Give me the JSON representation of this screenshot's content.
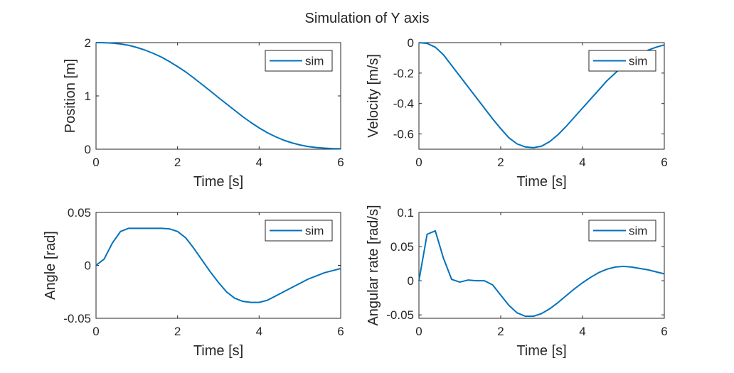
{
  "figure": {
    "title": "Simulation of Y axis",
    "line_color": "#0072BD",
    "axes_color": "#262626"
  },
  "chart_data": [
    {
      "type": "line",
      "xlabel": "Time [s]",
      "ylabel": "Position [m]",
      "xlim": [
        0,
        6
      ],
      "ylim": [
        0,
        2
      ],
      "xticks": [
        0,
        2,
        4,
        6
      ],
      "yticks": [
        0,
        1,
        2
      ],
      "ytick_labels": [
        "0",
        "1",
        "2"
      ],
      "xtick_labels": [
        "0",
        "2",
        "4",
        "6"
      ],
      "grid": false,
      "legend": "top-right",
      "series": [
        {
          "name": "sim",
          "x": [
            0,
            0.2,
            0.4,
            0.6,
            0.8,
            1.0,
            1.2,
            1.4,
            1.6,
            1.8,
            2.0,
            2.2,
            2.4,
            2.6,
            2.8,
            3.0,
            3.2,
            3.4,
            3.6,
            3.8,
            4.0,
            4.2,
            4.4,
            4.6,
            4.8,
            5.0,
            5.2,
            5.4,
            5.6,
            5.8,
            6.0
          ],
          "values": [
            2.0,
            1.998,
            1.99,
            1.975,
            1.95,
            1.91,
            1.86,
            1.8,
            1.73,
            1.645,
            1.55,
            1.45,
            1.335,
            1.215,
            1.095,
            0.97,
            0.85,
            0.73,
            0.61,
            0.5,
            0.4,
            0.31,
            0.235,
            0.17,
            0.12,
            0.08,
            0.05,
            0.032,
            0.02,
            0.012,
            0.008
          ]
        }
      ]
    },
    {
      "type": "line",
      "xlabel": "Time [s]",
      "ylabel": "Velocity [m/s]",
      "xlim": [
        0,
        6
      ],
      "ylim": [
        -0.7,
        0
      ],
      "xticks": [
        0,
        2,
        4,
        6
      ],
      "yticks": [
        0,
        -0.2,
        -0.4,
        -0.6
      ],
      "ytick_labels": [
        "0",
        "-0.2",
        "-0.4",
        "-0.6"
      ],
      "xtick_labels": [
        "0",
        "2",
        "4",
        "6"
      ],
      "grid": false,
      "legend": "top-right",
      "series": [
        {
          "name": "sim",
          "x": [
            0,
            0.2,
            0.4,
            0.6,
            0.8,
            1.0,
            1.2,
            1.4,
            1.6,
            1.8,
            2.0,
            2.2,
            2.4,
            2.6,
            2.8,
            3.0,
            3.2,
            3.4,
            3.6,
            3.8,
            4.0,
            4.2,
            4.4,
            4.6,
            4.8,
            5.0,
            5.2,
            5.4,
            5.6,
            5.8,
            6.0
          ],
          "values": [
            0,
            -0.005,
            -0.03,
            -0.08,
            -0.15,
            -0.22,
            -0.29,
            -0.36,
            -0.43,
            -0.5,
            -0.565,
            -0.625,
            -0.665,
            -0.685,
            -0.69,
            -0.68,
            -0.65,
            -0.605,
            -0.55,
            -0.49,
            -0.43,
            -0.37,
            -0.31,
            -0.25,
            -0.2,
            -0.15,
            -0.11,
            -0.08,
            -0.05,
            -0.03,
            -0.015
          ]
        }
      ]
    },
    {
      "type": "line",
      "xlabel": "Time [s]",
      "ylabel": "Angle [rad]",
      "xlim": [
        0,
        6
      ],
      "ylim": [
        -0.05,
        0.05
      ],
      "xticks": [
        0,
        2,
        4,
        6
      ],
      "yticks": [
        0.05,
        0,
        -0.05
      ],
      "ytick_labels": [
        "0.05",
        "0",
        "-0.05"
      ],
      "xtick_labels": [
        "0",
        "2",
        "4",
        "6"
      ],
      "grid": false,
      "legend": "top-right",
      "series": [
        {
          "name": "sim",
          "x": [
            0,
            0.2,
            0.4,
            0.6,
            0.8,
            1.0,
            1.2,
            1.4,
            1.6,
            1.8,
            2.0,
            2.2,
            2.4,
            2.6,
            2.8,
            3.0,
            3.2,
            3.4,
            3.6,
            3.8,
            4.0,
            4.2,
            4.4,
            4.6,
            4.8,
            5.0,
            5.2,
            5.4,
            5.6,
            5.8,
            6.0
          ],
          "values": [
            0.0,
            0.006,
            0.021,
            0.032,
            0.035,
            0.035,
            0.035,
            0.035,
            0.035,
            0.0345,
            0.032,
            0.026,
            0.016,
            0.005,
            -0.006,
            -0.016,
            -0.025,
            -0.031,
            -0.034,
            -0.035,
            -0.035,
            -0.033,
            -0.029,
            -0.025,
            -0.021,
            -0.017,
            -0.013,
            -0.01,
            -0.007,
            -0.005,
            -0.003
          ]
        }
      ]
    },
    {
      "type": "line",
      "xlabel": "Time [s]",
      "ylabel": "Angular rate [rad/s]",
      "xlim": [
        0,
        6
      ],
      "ylim": [
        -0.055,
        0.1
      ],
      "xticks": [
        0,
        2,
        4,
        6
      ],
      "yticks": [
        0.1,
        0.05,
        0,
        -0.05
      ],
      "ytick_labels": [
        "0.1",
        "0.05",
        "0",
        "-0.05"
      ],
      "xtick_labels": [
        "0",
        "2",
        "4",
        "6"
      ],
      "grid": false,
      "legend": "top-right",
      "series": [
        {
          "name": "sim",
          "x": [
            0,
            0.2,
            0.4,
            0.6,
            0.8,
            1.0,
            1.2,
            1.4,
            1.6,
            1.8,
            2.0,
            2.2,
            2.4,
            2.6,
            2.8,
            3.0,
            3.2,
            3.4,
            3.6,
            3.8,
            4.0,
            4.2,
            4.4,
            4.6,
            4.8,
            5.0,
            5.2,
            5.4,
            5.6,
            5.8,
            6.0
          ],
          "values": [
            0.0,
            0.068,
            0.073,
            0.033,
            0.002,
            -0.002,
            0.001,
            0.0,
            0.0,
            -0.006,
            -0.021,
            -0.036,
            -0.047,
            -0.052,
            -0.052,
            -0.048,
            -0.041,
            -0.032,
            -0.022,
            -0.012,
            -0.003,
            0.005,
            0.012,
            0.017,
            0.02,
            0.021,
            0.02,
            0.018,
            0.016,
            0.013,
            0.01
          ]
        }
      ]
    }
  ]
}
